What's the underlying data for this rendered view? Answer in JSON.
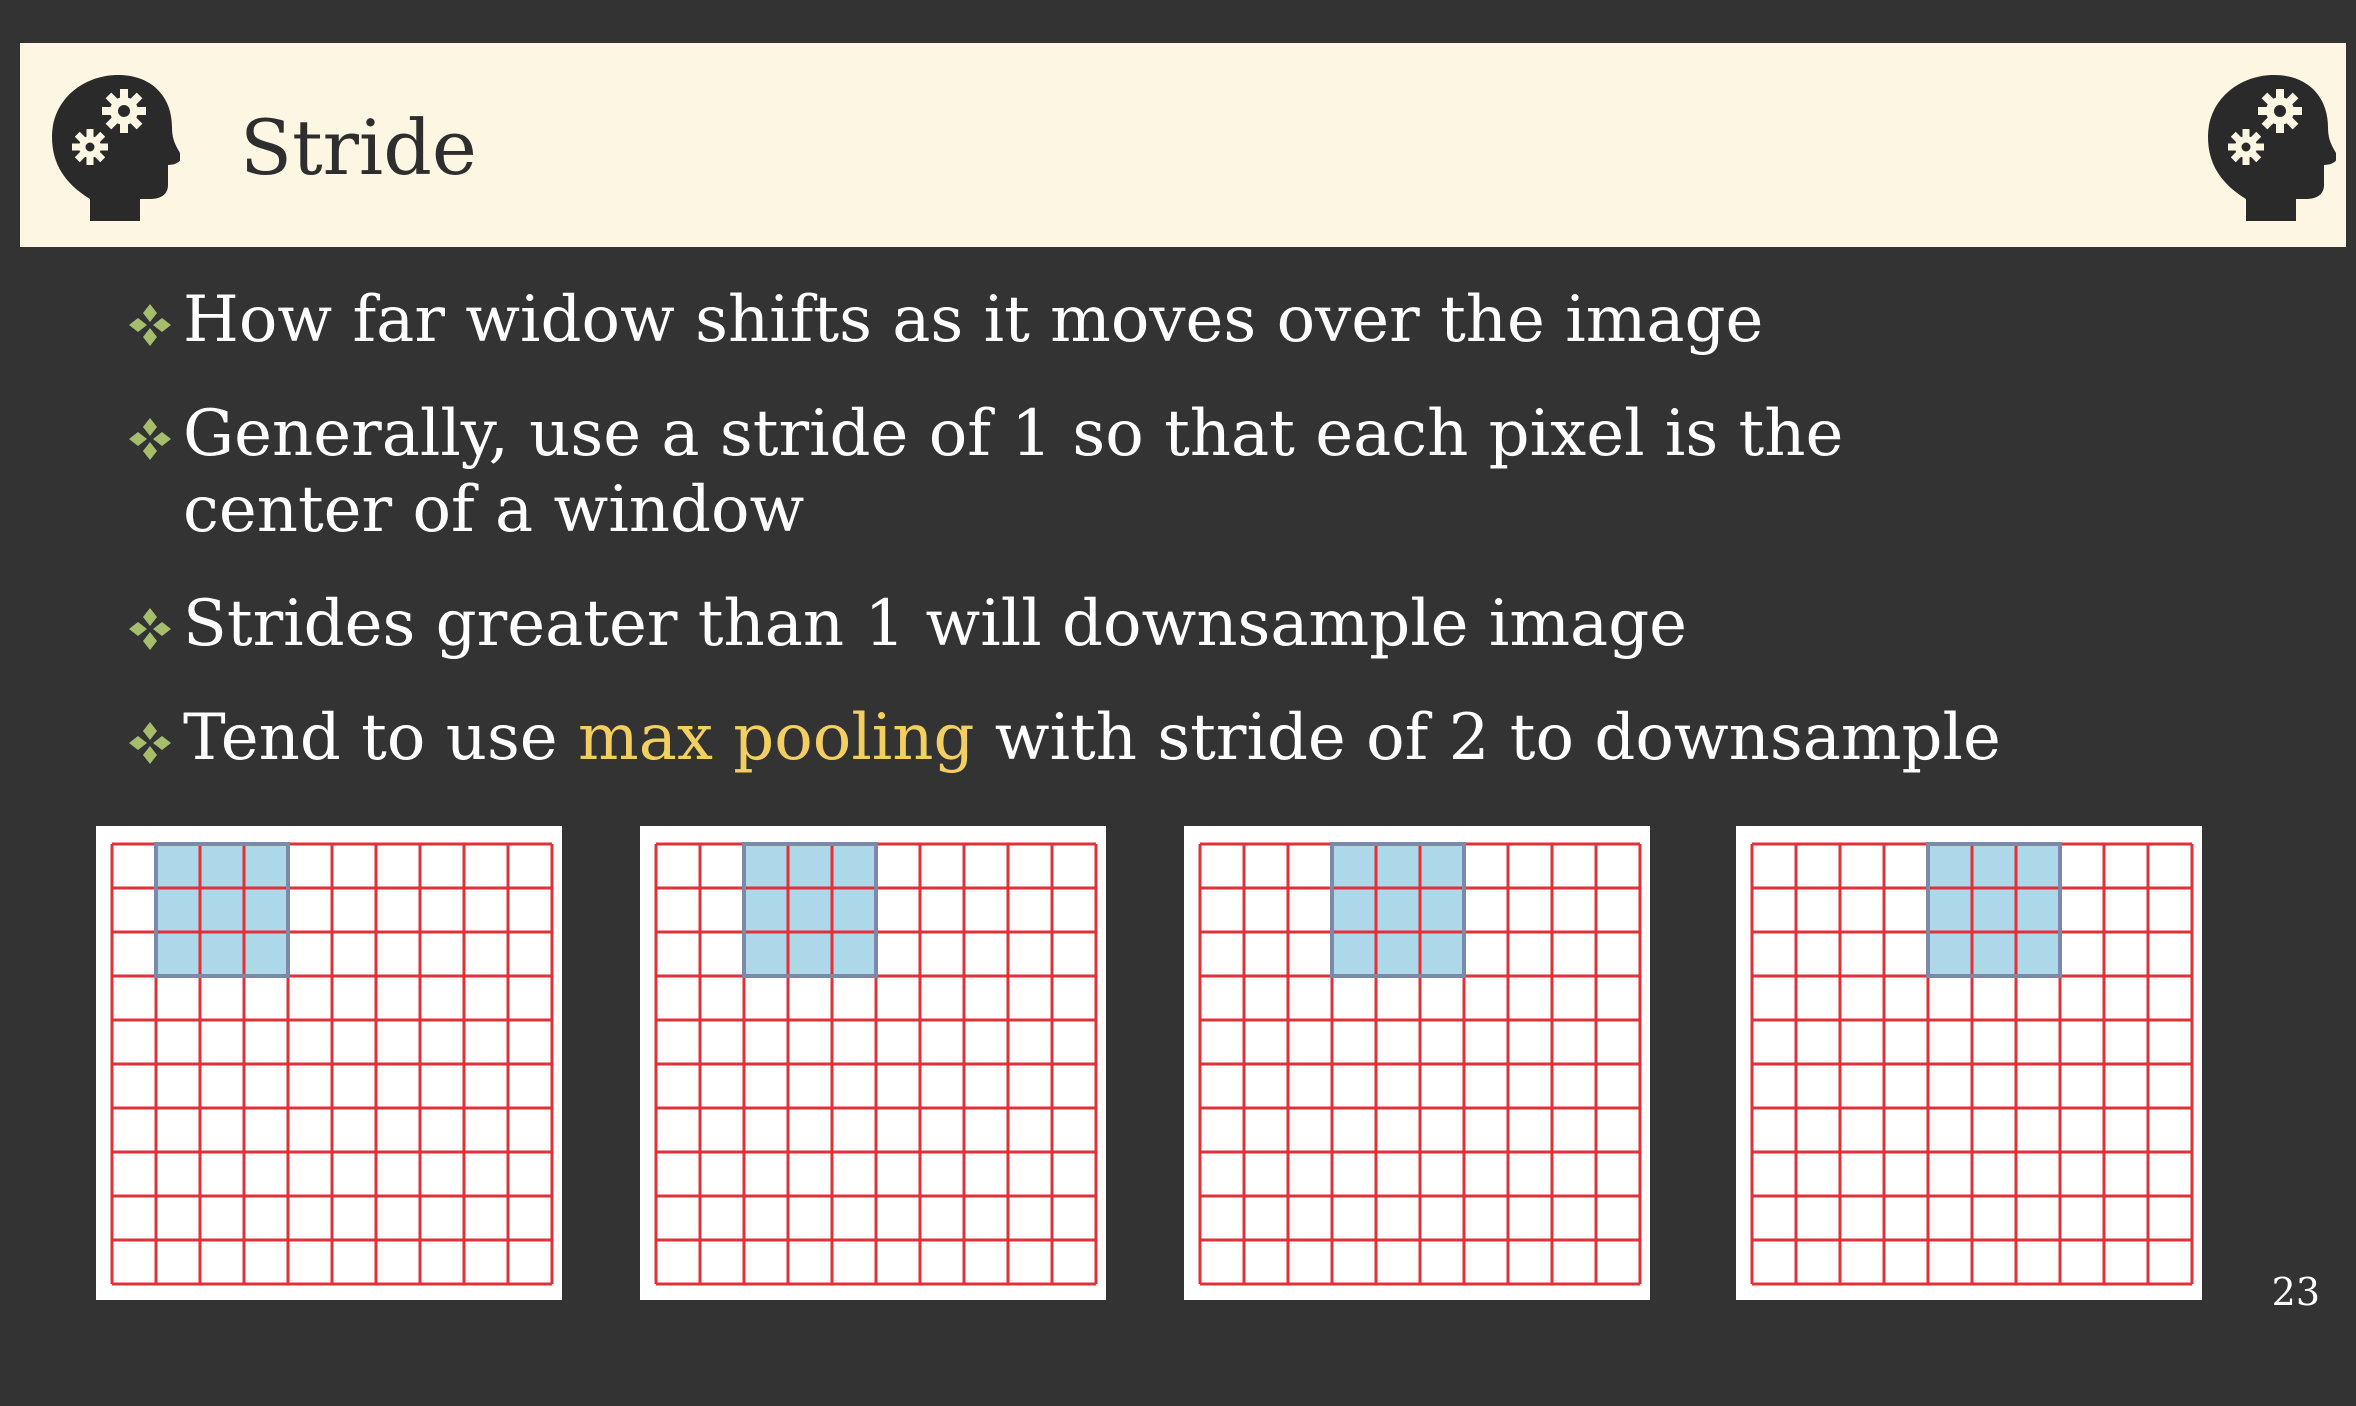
{
  "slide": {
    "title": "Stride",
    "page_number": "23",
    "icons": {
      "left": "head-with-gears-icon",
      "right": "head-with-gears-icon",
      "bullet": "diamond-bullet-icon"
    },
    "colors": {
      "background": "#333333",
      "title_bar": "#fcf6e2",
      "text": "#ffffff",
      "highlight": "#f3cf62",
      "bullet": "#a6bd6d",
      "grid_line": "#e0303a",
      "window_fill": "#add8ea",
      "window_border": "#7a8aa8"
    }
  },
  "bullets": [
    {
      "text": "How far widow shifts as it moves over the image"
    },
    {
      "text": "Generally, use a stride of 1 so that each pixel is the center of a window"
    },
    {
      "text": "Strides greater than 1 will downsample image"
    },
    {
      "before": "Tend to use ",
      "highlight": "max pooling",
      "after": " with stride of 2 to downsample"
    }
  ],
  "stride_grids": {
    "rows": 10,
    "cols": 10,
    "window_size": 3,
    "window_positions": [
      {
        "row": 0,
        "col": 1
      },
      {
        "row": 0,
        "col": 2
      },
      {
        "row": 0,
        "col": 3
      },
      {
        "row": 0,
        "col": 4
      }
    ]
  }
}
